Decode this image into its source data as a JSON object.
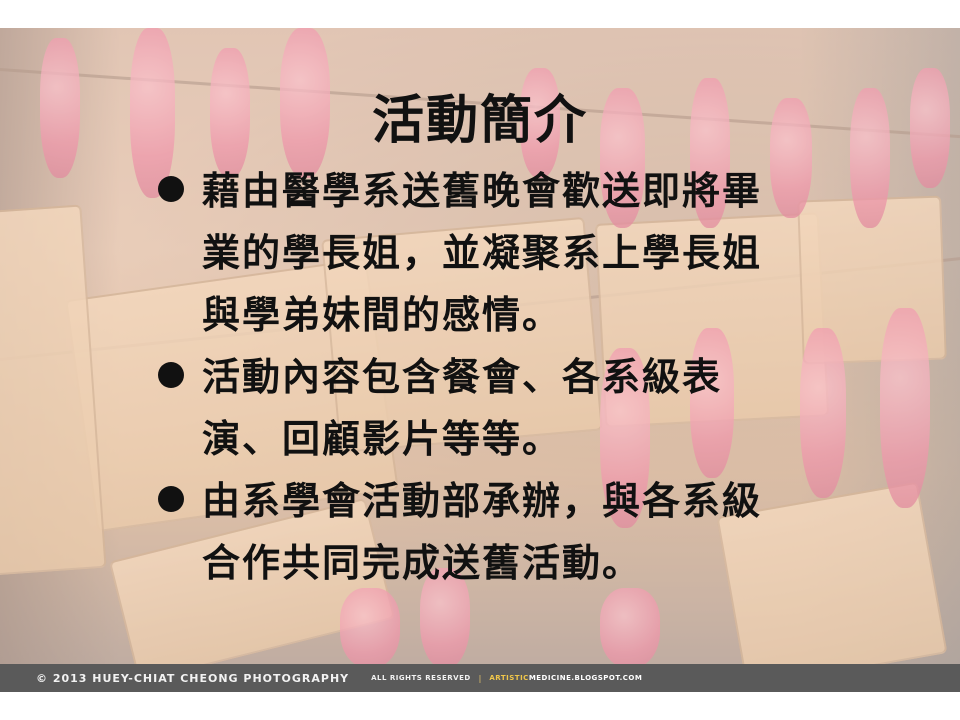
{
  "slide": {
    "title": "活動簡介",
    "bullets": [
      "藉由醫學系送舊晚會歡送即將畢業的學長姐，並凝聚系上學長姐與學弟妹間的感情。",
      "活動內容包含餐會、各系級表演、回顧影片等等。",
      "由系學會活動部承辦，與各系級合作共同完成送舊活動。"
    ]
  },
  "footer": {
    "copyright": "©  2013   HUEY-CHIAT   CHEONG   PHOTOGRAPHY",
    "rights": "ALL RIGHTS RESERVED",
    "separator": "|",
    "site_accent": "ARTISTIC",
    "site_rest": "MEDICINE.BLOGSPOT.COM"
  },
  "colors": {
    "text": "#111111",
    "footer_bg": "#5a5a5a",
    "tassel_pink": "#e2557f",
    "plaque_wood": "#d8b07f",
    "footer_accent": "#f0c64a"
  }
}
